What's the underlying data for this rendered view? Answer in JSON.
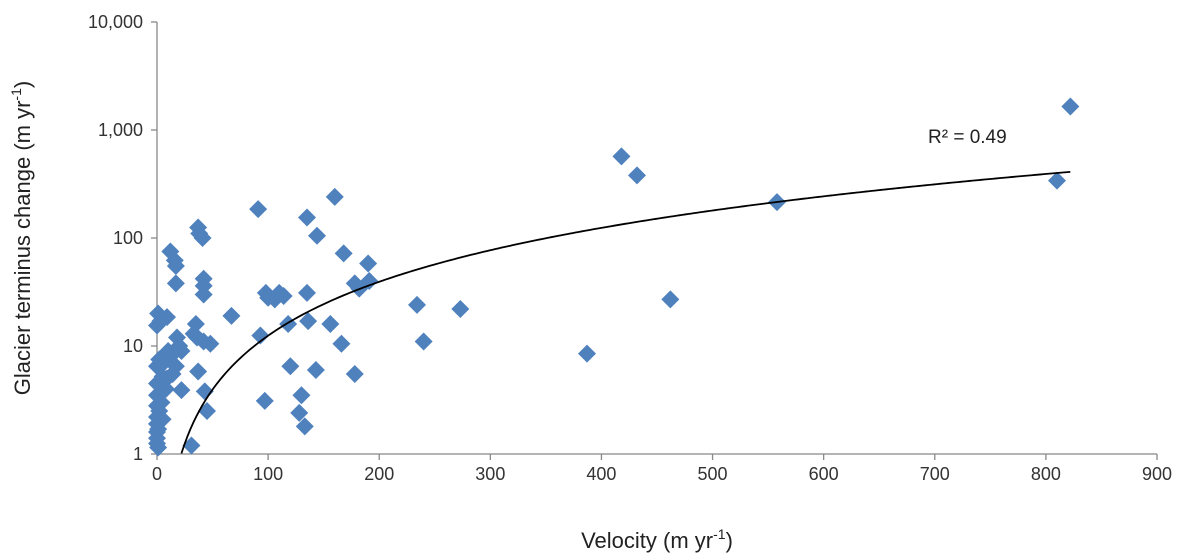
{
  "chart_data": {
    "type": "scatter",
    "title": "",
    "xlabel": "Velocity (m yr-1)",
    "xlabel_main": "Velocity  (m yr",
    "xlabel_sup": "-1",
    "xlabel_end": ")",
    "ylabel": "Glacier terminus change (m yr-1)",
    "ylabel_main": "Glacier terminus change (m yr",
    "ylabel_sup": "-1",
    "ylabel_end": ")",
    "xlim": [
      0,
      900
    ],
    "ylim": [
      1,
      10000
    ],
    "y_scale": "log",
    "grid": false,
    "legend": "none",
    "x_ticks": [
      0,
      100,
      200,
      300,
      400,
      500,
      600,
      700,
      800,
      900
    ],
    "x_tick_labels": [
      "0",
      "100",
      "200",
      "300",
      "400",
      "500",
      "600",
      "700",
      "800",
      "900"
    ],
    "y_ticks": [
      1,
      10,
      100,
      1000,
      10000
    ],
    "y_tick_labels": [
      "1",
      "10",
      "100",
      "1,000",
      "10,000"
    ],
    "marker_color": "#4F81BD",
    "trendline": {
      "type": "logarithmic",
      "color": "#000000",
      "x_range": [
        22,
        822
      ],
      "r_squared_label": "R² = 0.49"
    },
    "points": [
      {
        "x": 822,
        "y": 1650
      },
      {
        "x": 810,
        "y": 340
      },
      {
        "x": 558,
        "y": 215
      },
      {
        "x": 462,
        "y": 27
      },
      {
        "x": 432,
        "y": 380
      },
      {
        "x": 418,
        "y": 570
      },
      {
        "x": 387,
        "y": 8.5
      },
      {
        "x": 273,
        "y": 22
      },
      {
        "x": 240,
        "y": 11
      },
      {
        "x": 234,
        "y": 24
      },
      {
        "x": 191,
        "y": 40
      },
      {
        "x": 190,
        "y": 58
      },
      {
        "x": 182,
        "y": 34
      },
      {
        "x": 178,
        "y": 38
      },
      {
        "x": 178,
        "y": 5.5
      },
      {
        "x": 168,
        "y": 72
      },
      {
        "x": 166,
        "y": 10.5
      },
      {
        "x": 160,
        "y": 240
      },
      {
        "x": 156,
        "y": 16
      },
      {
        "x": 144,
        "y": 105
      },
      {
        "x": 143,
        "y": 6
      },
      {
        "x": 136,
        "y": 17
      },
      {
        "x": 135,
        "y": 31
      },
      {
        "x": 135,
        "y": 155
      },
      {
        "x": 133,
        "y": 1.8
      },
      {
        "x": 130,
        "y": 3.5
      },
      {
        "x": 128,
        "y": 2.4
      },
      {
        "x": 120,
        "y": 6.5
      },
      {
        "x": 118,
        "y": 16
      },
      {
        "x": 114,
        "y": 29
      },
      {
        "x": 110,
        "y": 31
      },
      {
        "x": 106,
        "y": 27
      },
      {
        "x": 100,
        "y": 28
      },
      {
        "x": 98,
        "y": 31
      },
      {
        "x": 97,
        "y": 3.1
      },
      {
        "x": 93,
        "y": 12.5
      },
      {
        "x": 91,
        "y": 185
      },
      {
        "x": 67,
        "y": 19
      },
      {
        "x": 48,
        "y": 10.5
      },
      {
        "x": 45,
        "y": 2.5
      },
      {
        "x": 43,
        "y": 3.8
      },
      {
        "x": 42,
        "y": 11
      },
      {
        "x": 42,
        "y": 30
      },
      {
        "x": 42,
        "y": 36
      },
      {
        "x": 42,
        "y": 42
      },
      {
        "x": 41,
        "y": 100
      },
      {
        "x": 38,
        "y": 110
      },
      {
        "x": 37,
        "y": 125
      },
      {
        "x": 37,
        "y": 5.8
      },
      {
        "x": 36,
        "y": 12
      },
      {
        "x": 35,
        "y": 16
      },
      {
        "x": 33,
        "y": 13
      },
      {
        "x": 31,
        "y": 1.2
      },
      {
        "x": 22,
        "y": 3.9
      },
      {
        "x": 22,
        "y": 9
      },
      {
        "x": 20,
        "y": 10
      },
      {
        "x": 18,
        "y": 12
      },
      {
        "x": 17,
        "y": 38
      },
      {
        "x": 17,
        "y": 6.5
      },
      {
        "x": 17,
        "y": 55
      },
      {
        "x": 16,
        "y": 62
      },
      {
        "x": 14,
        "y": 5.5
      },
      {
        "x": 12,
        "y": 75
      },
      {
        "x": 12,
        "y": 8
      },
      {
        "x": 10,
        "y": 9
      },
      {
        "x": 9,
        "y": 5
      },
      {
        "x": 9,
        "y": 18.5
      },
      {
        "x": 8,
        "y": 4
      },
      {
        "x": 6,
        "y": 7
      },
      {
        "x": 5,
        "y": 5.2
      },
      {
        "x": 5,
        "y": 2.1
      },
      {
        "x": 4,
        "y": 3
      },
      {
        "x": 3,
        "y": 17
      },
      {
        "x": 3,
        "y": 4.5
      },
      {
        "x": 2,
        "y": 7.5
      },
      {
        "x": 2,
        "y": 2.5
      },
      {
        "x": 1,
        "y": 1.7
      },
      {
        "x": 1,
        "y": 1.15
      },
      {
        "x": 1,
        "y": 20
      },
      {
        "x": 0,
        "y": 15.5
      },
      {
        "x": 0,
        "y": 6.5
      },
      {
        "x": 0,
        "y": 4.5
      },
      {
        "x": 0,
        "y": 3.5
      },
      {
        "x": 0,
        "y": 2.8
      },
      {
        "x": 0,
        "y": 2.2
      },
      {
        "x": 0,
        "y": 1.9
      },
      {
        "x": 0,
        "y": 1.6
      },
      {
        "x": 0,
        "y": 1.4
      },
      {
        "x": 0,
        "y": 1.25
      }
    ]
  }
}
